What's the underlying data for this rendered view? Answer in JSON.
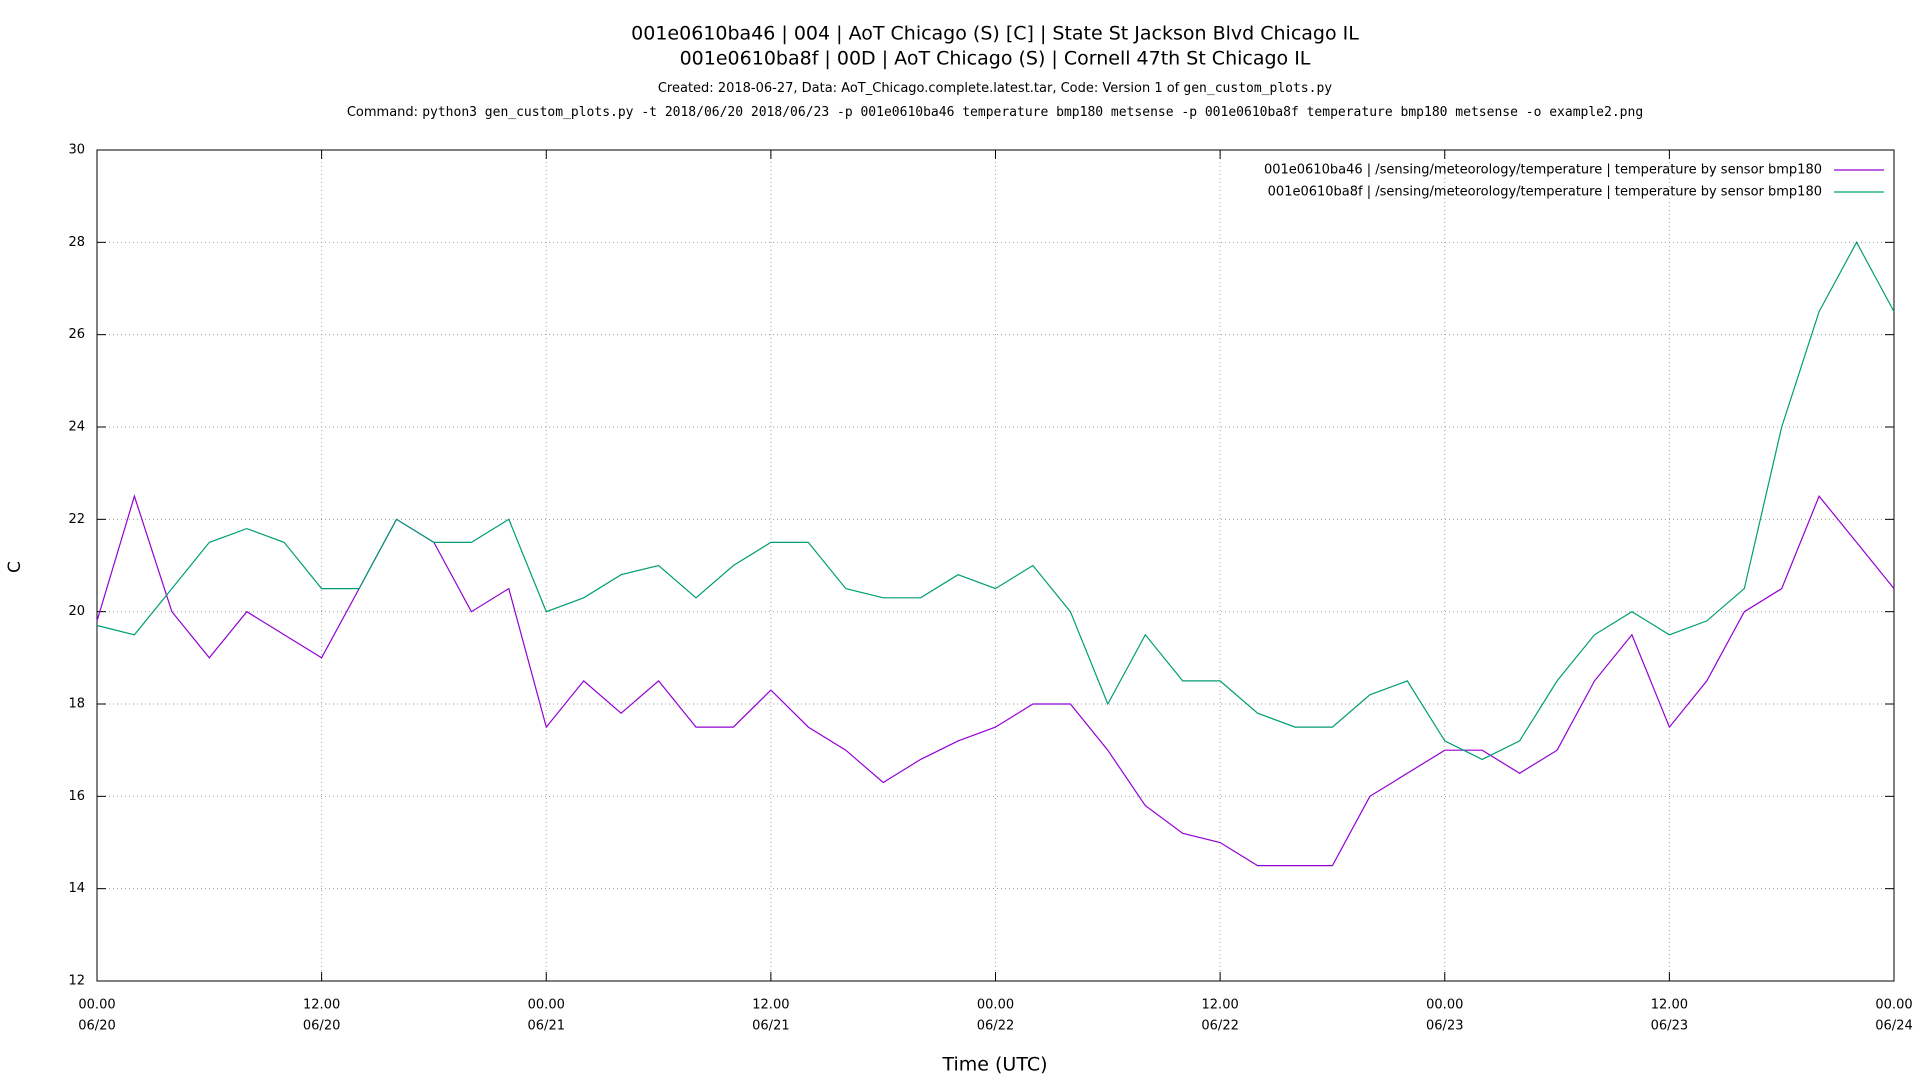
{
  "chart_data": {
    "type": "line",
    "title": [
      "001e0610ba46 | 004 | AoT Chicago (S) [C] | State St   Jackson Blvd Chicago IL",
      "001e0610ba8f | 00D | AoT Chicago (S) | Cornell   47th St Chicago IL"
    ],
    "subtitle": {
      "created": "Created: 2018-06-27, Data: AoT_Chicago.complete.latest.tar, Code: Version 1 of",
      "script": "gen_custom_plots.py"
    },
    "command": {
      "label": "Command:",
      "text": "python3 gen_custom_plots.py -t 2018/06/20 2018/06/23 -p 001e0610ba46 temperature bmp180 metsense -p 001e0610ba8f temperature bmp180 metsense -o example2.png"
    },
    "x_label": "Time (UTC)",
    "y_label": "C",
    "x": [
      "06/20 00:00",
      "06/20 02:00",
      "06/20 04:00",
      "06/20 06:00",
      "06/20 08:00",
      "06/20 10:00",
      "06/20 12:00",
      "06/20 14:00",
      "06/20 16:00",
      "06/20 18:00",
      "06/20 20:00",
      "06/20 22:00",
      "06/21 00:00",
      "06/21 02:00",
      "06/21 04:00",
      "06/21 06:00",
      "06/21 08:00",
      "06/21 10:00",
      "06/21 12:00",
      "06/21 14:00",
      "06/21 16:00",
      "06/21 18:00",
      "06/21 20:00",
      "06/21 22:00",
      "06/22 00:00",
      "06/22 02:00",
      "06/22 04:00",
      "06/22 06:00",
      "06/22 08:00",
      "06/22 10:00",
      "06/22 12:00",
      "06/22 14:00",
      "06/22 16:00",
      "06/22 18:00",
      "06/22 20:00",
      "06/22 22:00",
      "06/23 00:00",
      "06/23 02:00",
      "06/23 04:00",
      "06/23 06:00",
      "06/23 08:00",
      "06/23 10:00",
      "06/23 12:00",
      "06/23 14:00",
      "06/23 16:00",
      "06/23 18:00",
      "06/23 20:00",
      "06/23 22:00",
      "06/24 00:00"
    ],
    "series": [
      {
        "name": "001e0610ba46 | /sensing/meteorology/temperature | temperature by sensor bmp180",
        "color": "#9400d3",
        "values": [
          19.8,
          22.5,
          20,
          19,
          20,
          19.5,
          19,
          20.5,
          22,
          21.5,
          20,
          20.5,
          17.5,
          18.5,
          17.8,
          18.5,
          17.5,
          17.5,
          18.3,
          17.5,
          17,
          16.3,
          16.8,
          17.2,
          17.5,
          18,
          18,
          17,
          15.8,
          15.2,
          15,
          14.5,
          14.5,
          14.5,
          16,
          16.5,
          17,
          17,
          16.5,
          17,
          18.5,
          19.5,
          17.5,
          18.5,
          20,
          20.5,
          22.5,
          21.5,
          20.5
        ]
      },
      {
        "name": "001e0610ba8f | /sensing/meteorology/temperature | temperature by sensor bmp180",
        "color": "#009e73",
        "values": [
          19.7,
          19.5,
          20.5,
          21.5,
          21.8,
          21.5,
          20.5,
          20.5,
          22,
          21.5,
          21.5,
          22,
          20,
          20.3,
          20.8,
          21,
          20.3,
          21,
          21.5,
          21.5,
          20.5,
          20.3,
          20.3,
          20.8,
          20.5,
          21,
          20,
          18,
          19.5,
          18.5,
          18.5,
          17.8,
          17.5,
          17.5,
          18.2,
          18.5,
          17.2,
          16.8,
          17.2,
          18.5,
          19.5,
          20,
          19.5,
          19.8,
          20.5,
          24,
          26.5,
          28,
          26.5
        ]
      }
    ],
    "xlim": [
      "06/20 00:00",
      "06/24 00:00"
    ],
    "xticks": [
      {
        "value": "06/20 00:00",
        "label": [
          "00.00",
          "06/20"
        ]
      },
      {
        "value": "06/20 12:00",
        "label": [
          "12.00",
          "06/20"
        ]
      },
      {
        "value": "06/21 00:00",
        "label": [
          "00.00",
          "06/21"
        ]
      },
      {
        "value": "06/21 12:00",
        "label": [
          "12.00",
          "06/21"
        ]
      },
      {
        "value": "06/22 00:00",
        "label": [
          "00.00",
          "06/22"
        ]
      },
      {
        "value": "06/22 12:00",
        "label": [
          "12.00",
          "06/22"
        ]
      },
      {
        "value": "06/23 00:00",
        "label": [
          "00.00",
          "06/23"
        ]
      },
      {
        "value": "06/23 12:00",
        "label": [
          "12.00",
          "06/23"
        ]
      },
      {
        "value": "06/24 00:00",
        "label": [
          "00.00",
          "06/24"
        ]
      }
    ],
    "ylim": [
      12,
      30
    ],
    "yticks": [
      12,
      14,
      16,
      18,
      20,
      22,
      24,
      26,
      28,
      30
    ],
    "grid": true,
    "legend": "top-right"
  }
}
